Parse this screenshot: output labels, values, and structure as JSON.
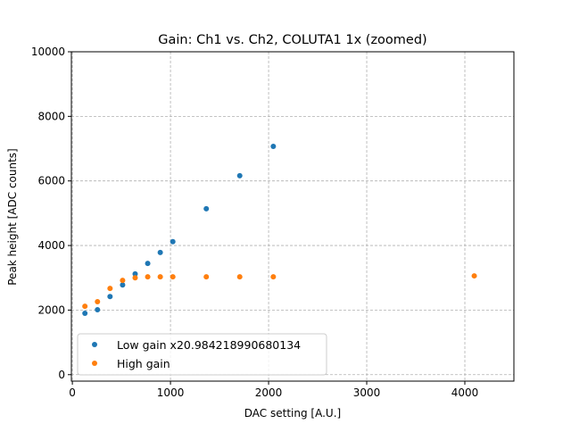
{
  "chart_data": {
    "type": "scatter",
    "title": "Gain: Ch1 vs. Ch2, COLUTA1 1x (zoomed)",
    "xlabel": "DAC setting [A.U.]",
    "ylabel": "Peak height [ADC counts]",
    "xlim": [
      -10,
      4500
    ],
    "ylim": [
      -200,
      10000
    ],
    "xticks": [
      0,
      1000,
      2000,
      3000,
      4000
    ],
    "yticks": [
      0,
      2000,
      4000,
      6000,
      8000,
      10000
    ],
    "xtick_labels": [
      "0",
      "1000",
      "2000",
      "3000",
      "4000"
    ],
    "ytick_labels": [
      "0",
      "2000",
      "4000",
      "6000",
      "8000",
      "10000"
    ],
    "grid": true,
    "legend_position": "lower-left",
    "series": [
      {
        "name": "Low gain x20.984218990680134",
        "color": "#1f77b4",
        "x": [
          128,
          256,
          384,
          512,
          640,
          768,
          896,
          1024,
          1365,
          1706,
          2048
        ],
        "y": [
          1900,
          2010,
          2420,
          2780,
          3120,
          3445,
          3785,
          4120,
          5140,
          6160,
          7070
        ]
      },
      {
        "name": "High gain",
        "color": "#ff7f0e",
        "x": [
          128,
          256,
          384,
          512,
          640,
          768,
          896,
          1024,
          1365,
          1706,
          2048,
          4096
        ],
        "y": [
          2120,
          2260,
          2670,
          2920,
          3000,
          3030,
          3030,
          3030,
          3030,
          3030,
          3030,
          3060
        ]
      }
    ]
  }
}
